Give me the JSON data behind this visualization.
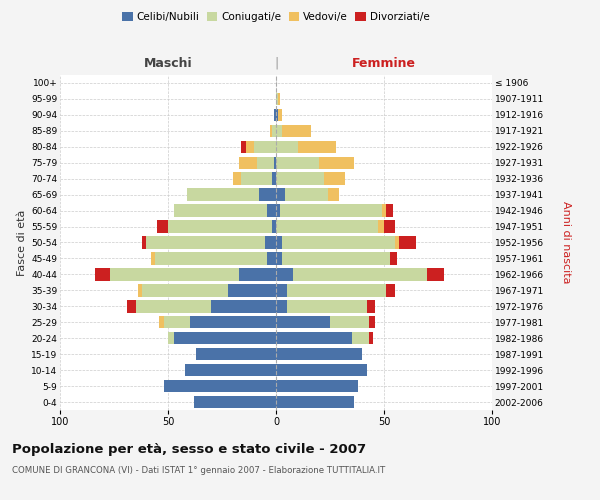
{
  "age_groups": [
    "0-4",
    "5-9",
    "10-14",
    "15-19",
    "20-24",
    "25-29",
    "30-34",
    "35-39",
    "40-44",
    "45-49",
    "50-54",
    "55-59",
    "60-64",
    "65-69",
    "70-74",
    "75-79",
    "80-84",
    "85-89",
    "90-94",
    "95-99",
    "100+"
  ],
  "birth_years": [
    "2002-2006",
    "1997-2001",
    "1992-1996",
    "1987-1991",
    "1982-1986",
    "1977-1981",
    "1972-1976",
    "1967-1971",
    "1962-1966",
    "1957-1961",
    "1952-1956",
    "1947-1951",
    "1942-1946",
    "1937-1941",
    "1932-1936",
    "1927-1931",
    "1922-1926",
    "1917-1921",
    "1912-1916",
    "1907-1911",
    "≤ 1906"
  ],
  "colors": {
    "celibe": "#4a72a8",
    "coniugato": "#c8d8a0",
    "vedovo": "#f0c060",
    "divorziato": "#cc2020"
  },
  "maschi": {
    "celibe": [
      38,
      52,
      42,
      37,
      47,
      40,
      30,
      22,
      17,
      4,
      5,
      2,
      4,
      8,
      2,
      1,
      0,
      0,
      1,
      0,
      0
    ],
    "coniugato": [
      0,
      0,
      0,
      0,
      3,
      12,
      35,
      40,
      60,
      52,
      55,
      48,
      43,
      33,
      14,
      8,
      10,
      2,
      0,
      0,
      0
    ],
    "vedovo": [
      0,
      0,
      0,
      0,
      0,
      2,
      0,
      2,
      0,
      2,
      0,
      0,
      0,
      0,
      4,
      8,
      4,
      1,
      0,
      0,
      0
    ],
    "divorziato": [
      0,
      0,
      0,
      0,
      0,
      0,
      4,
      0,
      7,
      0,
      2,
      5,
      0,
      0,
      0,
      0,
      2,
      0,
      0,
      0,
      0
    ]
  },
  "femmine": {
    "nubile": [
      36,
      38,
      42,
      40,
      35,
      25,
      5,
      5,
      8,
      3,
      3,
      0,
      2,
      4,
      0,
      0,
      0,
      0,
      1,
      0,
      0
    ],
    "coniugata": [
      0,
      0,
      0,
      0,
      8,
      18,
      37,
      46,
      62,
      50,
      52,
      47,
      47,
      20,
      22,
      20,
      10,
      3,
      0,
      1,
      0
    ],
    "vedova": [
      0,
      0,
      0,
      0,
      0,
      0,
      0,
      0,
      0,
      0,
      2,
      3,
      2,
      5,
      10,
      16,
      18,
      13,
      2,
      1,
      0
    ],
    "divorziata": [
      0,
      0,
      0,
      0,
      2,
      3,
      4,
      4,
      8,
      3,
      8,
      5,
      3,
      0,
      0,
      0,
      0,
      0,
      0,
      0,
      0
    ]
  },
  "title": "Popolazione per età, sesso e stato civile - 2007",
  "subtitle": "COMUNE DI GRANCONA (VI) - Dati ISTAT 1° gennaio 2007 - Elaborazione TUTTITALIA.IT",
  "ylabel_left": "Fasce di età",
  "ylabel_right": "Anni di nascita",
  "xlabel_left": "Maschi",
  "xlabel_right": "Femmine",
  "xlim": 100,
  "bg_color": "#f4f4f4",
  "plot_bg": "#ffffff",
  "grid_color": "#cccccc"
}
